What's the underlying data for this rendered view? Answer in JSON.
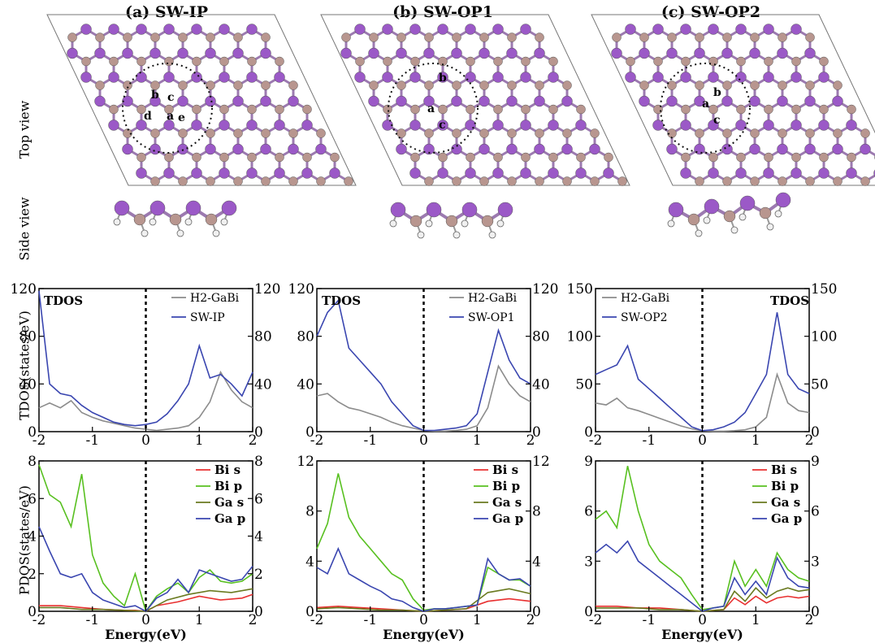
{
  "columns": [
    {
      "title": "(a) SW-IP"
    },
    {
      "title": "(b) SW-OP1"
    },
    {
      "title": "(c) SW-OP2"
    }
  ],
  "row_labels": {
    "top": "Top view",
    "side": "Side view",
    "tdos": "TDOS(states/eV)",
    "pdos": "PDOS(states/eV)"
  },
  "atom_labels": [
    [
      "a",
      "b",
      "c",
      "d",
      "e"
    ],
    [
      "a",
      "b",
      "c"
    ],
    [
      "a",
      "b",
      "c"
    ]
  ],
  "colors": {
    "bi_atom": "#9b59c7",
    "ga_atom": "#b8968f",
    "h_atom": "#f0f0f0",
    "h2_gabi": "#8c8c8c",
    "sw": "#3a46b0",
    "bi_s": "#e83030",
    "bi_p": "#58c020",
    "ga_s": "#6a7a20",
    "ga_p": "#3a46b0"
  },
  "chart_data": [
    {
      "type": "line",
      "panel": "a-tdos",
      "tag": "TDOS",
      "xlabel": "",
      "ylabel": "TDOS(states/eV)",
      "xlim": [
        -2,
        2
      ],
      "ylim": [
        0,
        120
      ],
      "xticks": [
        "-2",
        "-1",
        "0",
        "1",
        "2"
      ],
      "yticks": [
        "0",
        "40",
        "80",
        "120"
      ],
      "yticks_right": [
        "0",
        "40",
        "80",
        "120"
      ],
      "legend_position": "top-right",
      "fermi_line_x": 0,
      "series": [
        {
          "name": "H2-GaBi",
          "color": "#8c8c8c",
          "x": [
            -2.0,
            -1.8,
            -1.6,
            -1.4,
            -1.2,
            -1.0,
            -0.8,
            -0.6,
            -0.4,
            -0.2,
            0.0,
            0.2,
            0.4,
            0.6,
            0.8,
            1.0,
            1.2,
            1.4,
            1.6,
            1.8,
            2.0
          ],
          "y": [
            20,
            24,
            20,
            26,
            16,
            12,
            9,
            7,
            5,
            3,
            2,
            1,
            2,
            3,
            5,
            12,
            25,
            50,
            35,
            25,
            20
          ]
        },
        {
          "name": "SW-IP",
          "color": "#3a46b0",
          "x": [
            -2.0,
            -1.8,
            -1.6,
            -1.4,
            -1.2,
            -1.0,
            -0.8,
            -0.6,
            -0.4,
            -0.2,
            0.0,
            0.2,
            0.4,
            0.6,
            0.8,
            1.0,
            1.2,
            1.4,
            1.6,
            1.8,
            2.0
          ],
          "y": [
            118,
            40,
            32,
            30,
            22,
            16,
            12,
            8,
            6,
            5,
            6,
            8,
            15,
            26,
            40,
            72,
            45,
            48,
            40,
            30,
            50
          ]
        }
      ]
    },
    {
      "type": "line",
      "panel": "a-pdos",
      "tag": "",
      "xlabel": "Energy(eV)",
      "ylabel": "PDOS(states/eV)",
      "xlim": [
        -2,
        2
      ],
      "ylim": [
        0,
        8
      ],
      "xticks": [
        "-2",
        "-1",
        "0",
        "1",
        "2"
      ],
      "yticks": [
        "0",
        "2",
        "4",
        "6",
        "8"
      ],
      "yticks_right": [
        "0",
        "2",
        "4",
        "6",
        "8"
      ],
      "legend_position": "top-right",
      "fermi_line_x": 0,
      "series": [
        {
          "name": "Bi s",
          "color": "#e83030",
          "x": [
            -2.0,
            -1.6,
            -1.2,
            -0.8,
            -0.4,
            -0.2,
            0.0,
            0.2,
            0.6,
            1.0,
            1.4,
            1.8,
            2.0
          ],
          "y": [
            0.3,
            0.3,
            0.2,
            0.1,
            0.05,
            0.05,
            0.0,
            0.3,
            0.5,
            0.8,
            0.6,
            0.7,
            0.9
          ]
        },
        {
          "name": "Bi p",
          "color": "#58c020",
          "x": [
            -2.0,
            -1.8,
            -1.6,
            -1.4,
            -1.2,
            -1.0,
            -0.8,
            -0.6,
            -0.4,
            -0.2,
            0.0,
            0.2,
            0.4,
            0.6,
            0.8,
            1.0,
            1.2,
            1.4,
            1.6,
            1.8,
            2.0
          ],
          "y": [
            7.8,
            6.2,
            5.8,
            4.5,
            7.3,
            3.0,
            1.5,
            0.8,
            0.3,
            2.0,
            0.0,
            0.8,
            1.2,
            1.5,
            1.0,
            1.8,
            2.2,
            1.6,
            1.5,
            1.6,
            2.0
          ]
        },
        {
          "name": "Ga s",
          "color": "#6a7a20",
          "x": [
            -2.0,
            -1.6,
            -1.2,
            -0.8,
            -0.4,
            0.0,
            0.4,
            0.8,
            1.2,
            1.6,
            2.0
          ],
          "y": [
            0.2,
            0.2,
            0.1,
            0.1,
            0.05,
            0.0,
            0.6,
            0.9,
            1.1,
            1.0,
            1.2
          ]
        },
        {
          "name": "Ga p",
          "color": "#3a46b0",
          "x": [
            -2.0,
            -1.8,
            -1.6,
            -1.4,
            -1.2,
            -1.0,
            -0.8,
            -0.6,
            -0.4,
            -0.2,
            0.0,
            0.2,
            0.4,
            0.6,
            0.8,
            1.0,
            1.2,
            1.4,
            1.6,
            1.8,
            2.0
          ],
          "y": [
            4.5,
            3.2,
            2.0,
            1.8,
            2.0,
            1.0,
            0.6,
            0.4,
            0.2,
            0.3,
            0.0,
            0.7,
            1.0,
            1.7,
            1.0,
            2.2,
            2.0,
            1.8,
            1.6,
            1.7,
            2.4
          ]
        }
      ]
    },
    {
      "type": "line",
      "panel": "b-tdos",
      "tag": "TDOS",
      "xlabel": "",
      "ylabel": "",
      "xlim": [
        -2,
        2
      ],
      "ylim": [
        0,
        120
      ],
      "xticks": [
        "-2",
        "-1",
        "0",
        "1",
        "2"
      ],
      "yticks": [
        "0",
        "40",
        "80",
        "120"
      ],
      "yticks_right": [
        "0",
        "40",
        "80",
        "120"
      ],
      "legend_position": "top-right",
      "fermi_line_x": 0,
      "series": [
        {
          "name": "H2-GaBi",
          "color": "#8c8c8c",
          "x": [
            -2.0,
            -1.8,
            -1.6,
            -1.4,
            -1.2,
            -1.0,
            -0.8,
            -0.6,
            -0.4,
            -0.2,
            0.0,
            0.2,
            0.4,
            0.6,
            0.8,
            1.0,
            1.2,
            1.4,
            1.6,
            1.8,
            2.0
          ],
          "y": [
            30,
            32,
            25,
            20,
            18,
            15,
            12,
            8,
            5,
            3,
            1,
            0.5,
            0.5,
            1,
            2,
            5,
            20,
            55,
            40,
            30,
            25
          ]
        },
        {
          "name": "SW-OP1",
          "color": "#3a46b0",
          "x": [
            -2.0,
            -1.8,
            -1.6,
            -1.4,
            -1.2,
            -1.0,
            -0.8,
            -0.6,
            -0.4,
            -0.2,
            0.0,
            0.2,
            0.4,
            0.6,
            0.8,
            1.0,
            1.2,
            1.4,
            1.6,
            1.8,
            2.0
          ],
          "y": [
            80,
            100,
            110,
            70,
            60,
            50,
            40,
            25,
            15,
            5,
            1,
            1,
            2,
            3,
            5,
            15,
            50,
            85,
            60,
            45,
            40
          ]
        }
      ]
    },
    {
      "type": "line",
      "panel": "b-pdos",
      "tag": "",
      "xlabel": "Energy(eV)",
      "ylabel": "",
      "xlim": [
        -2,
        2
      ],
      "ylim": [
        0,
        12
      ],
      "xticks": [
        "-2",
        "-1",
        "0",
        "1",
        "2"
      ],
      "yticks": [
        "0",
        "4",
        "8",
        "12"
      ],
      "yticks_right": [
        "0",
        "4",
        "8",
        "12"
      ],
      "legend_position": "top-right",
      "fermi_line_x": 0,
      "series": [
        {
          "name": "Bi s",
          "color": "#e83030",
          "x": [
            -2.0,
            -1.6,
            -1.2,
            -0.8,
            -0.4,
            0.0,
            0.4,
            0.8,
            1.2,
            1.6,
            2.0
          ],
          "y": [
            0.3,
            0.4,
            0.3,
            0.2,
            0.1,
            0.0,
            0.1,
            0.2,
            0.8,
            1.0,
            0.8
          ]
        },
        {
          "name": "Bi p",
          "color": "#58c020",
          "x": [
            -2.0,
            -1.8,
            -1.6,
            -1.4,
            -1.2,
            -1.0,
            -0.8,
            -0.6,
            -0.4,
            -0.2,
            0.0,
            0.2,
            0.4,
            0.6,
            0.8,
            1.0,
            1.2,
            1.4,
            1.6,
            1.8,
            2.0
          ],
          "y": [
            5.0,
            7.0,
            11.0,
            7.5,
            6.0,
            5.0,
            4.0,
            3.0,
            2.5,
            1.0,
            0.1,
            0.2,
            0.2,
            0.3,
            0.4,
            0.5,
            3.5,
            3.0,
            2.5,
            2.5,
            2.0
          ]
        },
        {
          "name": "Ga s",
          "color": "#6a7a20",
          "x": [
            -2.0,
            -1.6,
            -1.2,
            -0.8,
            -0.4,
            0.0,
            0.4,
            0.8,
            1.2,
            1.6,
            2.0
          ],
          "y": [
            0.2,
            0.3,
            0.2,
            0.1,
            0.1,
            0.0,
            0.1,
            0.2,
            1.5,
            1.8,
            1.4
          ]
        },
        {
          "name": "Ga p",
          "color": "#3a46b0",
          "x": [
            -2.0,
            -1.8,
            -1.6,
            -1.4,
            -1.2,
            -1.0,
            -0.8,
            -0.6,
            -0.4,
            -0.2,
            0.0,
            0.2,
            0.4,
            0.6,
            0.8,
            1.0,
            1.2,
            1.4,
            1.6,
            1.8,
            2.0
          ],
          "y": [
            3.5,
            3.0,
            5.0,
            3.0,
            2.5,
            2.0,
            1.6,
            1.0,
            0.8,
            0.3,
            0.0,
            0.2,
            0.2,
            0.3,
            0.4,
            0.5,
            4.2,
            3.0,
            2.5,
            2.6,
            2.0
          ]
        }
      ]
    },
    {
      "type": "line",
      "panel": "c-tdos",
      "tag": "TDOS",
      "xlabel": "",
      "ylabel": "",
      "xlim": [
        -2,
        2
      ],
      "ylim": [
        0,
        150
      ],
      "xticks": [
        "-2",
        "-1",
        "0",
        "1",
        "2"
      ],
      "yticks": [
        "0",
        "50",
        "100",
        "150"
      ],
      "yticks_right": [
        "0",
        "50",
        "100",
        "150"
      ],
      "legend_position": "top-left",
      "fermi_line_x": 0,
      "series": [
        {
          "name": "H2-GaBi",
          "color": "#8c8c8c",
          "x": [
            -2.0,
            -1.8,
            -1.6,
            -1.4,
            -1.2,
            -1.0,
            -0.8,
            -0.6,
            -0.4,
            -0.2,
            0.0,
            0.2,
            0.4,
            0.6,
            0.8,
            1.0,
            1.2,
            1.4,
            1.6,
            1.8,
            2.0
          ],
          "y": [
            30,
            28,
            35,
            25,
            22,
            18,
            14,
            10,
            6,
            3,
            1,
            0.5,
            0.5,
            1,
            2,
            5,
            15,
            60,
            30,
            22,
            20
          ]
        },
        {
          "name": "SW-OP2",
          "color": "#3a46b0",
          "x": [
            -2.0,
            -1.8,
            -1.6,
            -1.4,
            -1.2,
            -1.0,
            -0.8,
            -0.6,
            -0.4,
            -0.2,
            0.0,
            0.2,
            0.4,
            0.6,
            0.8,
            1.0,
            1.2,
            1.4,
            1.6,
            1.8,
            2.0
          ],
          "y": [
            60,
            65,
            70,
            90,
            55,
            45,
            35,
            25,
            15,
            5,
            1,
            2,
            5,
            10,
            20,
            40,
            60,
            125,
            60,
            45,
            40
          ]
        }
      ]
    },
    {
      "type": "line",
      "panel": "c-pdos",
      "tag": "",
      "xlabel": "Energy(eV)",
      "ylabel": "",
      "xlim": [
        -2,
        2
      ],
      "ylim": [
        0,
        9
      ],
      "xticks": [
        "-2",
        "-1",
        "0",
        "1",
        "2"
      ],
      "yticks": [
        "0",
        "3",
        "6",
        "9"
      ],
      "yticks_right": [
        "0",
        "3",
        "6",
        "9"
      ],
      "legend_position": "top-right",
      "fermi_line_x": 0,
      "series": [
        {
          "name": "Bi s",
          "color": "#e83030",
          "x": [
            -2.0,
            -1.6,
            -1.2,
            -0.8,
            -0.4,
            0.0,
            0.4,
            0.6,
            0.8,
            1.0,
            1.2,
            1.4,
            1.6,
            1.8,
            2.0
          ],
          "y": [
            0.3,
            0.3,
            0.2,
            0.2,
            0.1,
            0.0,
            0.1,
            0.8,
            0.4,
            0.9,
            0.5,
            0.8,
            0.9,
            0.8,
            0.9
          ]
        },
        {
          "name": "Bi p",
          "color": "#58c020",
          "x": [
            -2.0,
            -1.8,
            -1.6,
            -1.4,
            -1.2,
            -1.0,
            -0.8,
            -0.6,
            -0.4,
            -0.2,
            0.0,
            0.2,
            0.4,
            0.6,
            0.8,
            1.0,
            1.2,
            1.4,
            1.6,
            1.8,
            2.0
          ],
          "y": [
            5.5,
            6.0,
            5.0,
            8.7,
            6.0,
            4.0,
            3.0,
            2.5,
            2.0,
            1.0,
            0.1,
            0.2,
            0.3,
            3.0,
            1.5,
            2.5,
            1.5,
            3.5,
            2.5,
            2.0,
            1.8
          ]
        },
        {
          "name": "Ga s",
          "color": "#6a7a20",
          "x": [
            -2.0,
            -1.6,
            -1.2,
            -0.8,
            -0.4,
            0.0,
            0.4,
            0.6,
            0.8,
            1.0,
            1.2,
            1.4,
            1.6,
            1.8,
            2.0
          ],
          "y": [
            0.2,
            0.2,
            0.2,
            0.1,
            0.1,
            0.0,
            0.1,
            1.2,
            0.6,
            1.4,
            0.8,
            1.2,
            1.4,
            1.2,
            1.3
          ]
        },
        {
          "name": "Ga p",
          "color": "#3a46b0",
          "x": [
            -2.0,
            -1.8,
            -1.6,
            -1.4,
            -1.2,
            -1.0,
            -0.8,
            -0.6,
            -0.4,
            -0.2,
            0.0,
            0.2,
            0.4,
            0.6,
            0.8,
            1.0,
            1.2,
            1.4,
            1.6,
            1.8,
            2.0
          ],
          "y": [
            3.5,
            4.0,
            3.5,
            4.2,
            3.0,
            2.5,
            2.0,
            1.5,
            1.0,
            0.5,
            0.0,
            0.2,
            0.3,
            2.0,
            1.0,
            1.8,
            1.0,
            3.2,
            2.0,
            1.5,
            1.4
          ]
        }
      ]
    }
  ]
}
